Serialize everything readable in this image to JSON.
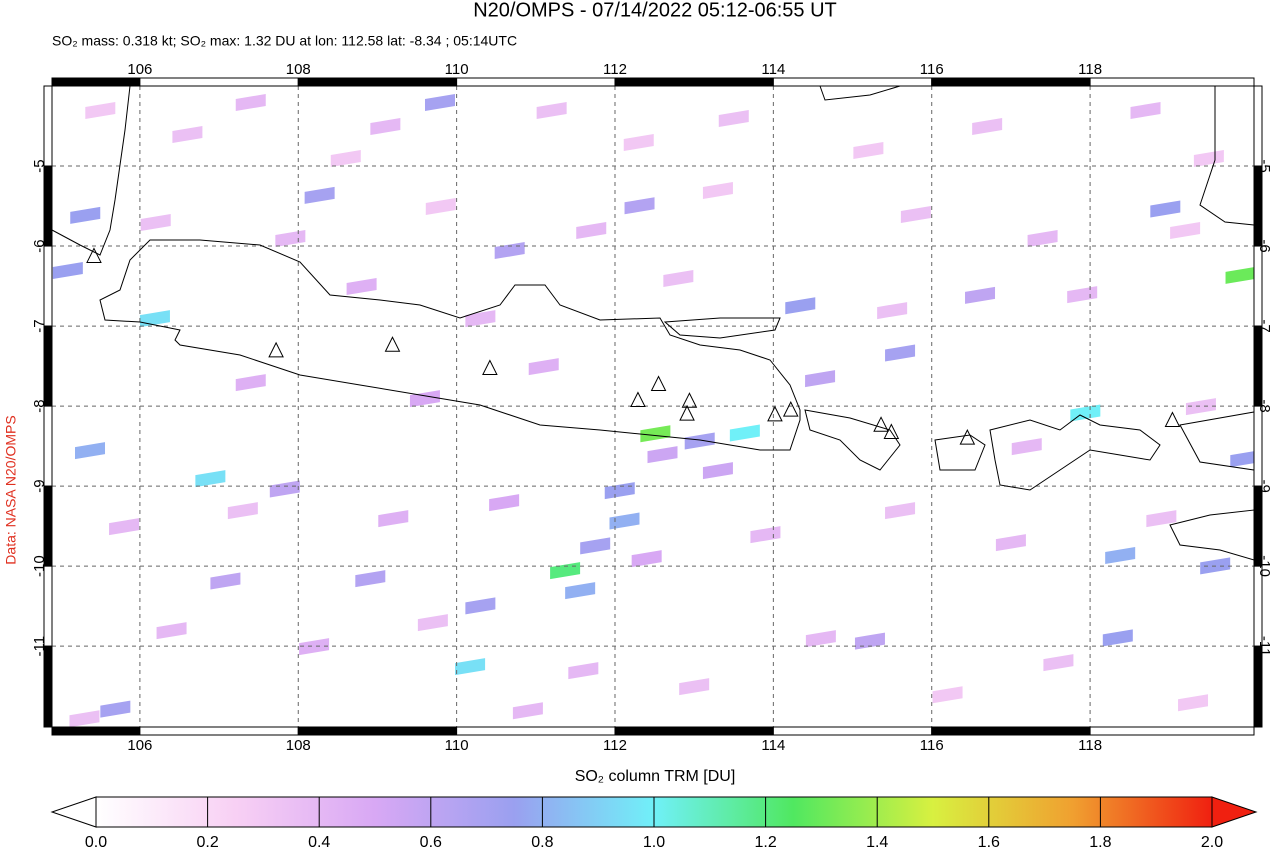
{
  "chart_data": {
    "type": "map",
    "title": "N20/OMPS - 07/14/2022 05:12-06:55 UT",
    "subtitle": "SO₂ mass: 0.318 kt; SO₂ max: 1.32 DU at lon: 112.58 lat: -8.34 ; 05:14UTC",
    "side_label": "Data: NASA N20/OMPS",
    "colorbar_label": "SO₂ column TRM [DU]",
    "xlim": [
      104.89,
      120.07
    ],
    "ylim": [
      -12.01,
      -4.0
    ],
    "xticks": [
      106,
      108,
      110,
      112,
      114,
      116,
      118
    ],
    "yticks": [
      -5,
      -6,
      -7,
      -8,
      -9,
      -10,
      -11
    ],
    "grid": true,
    "clim": [
      0,
      2
    ],
    "colormap": [
      "#ffffff",
      "#f8d0f4",
      "#d8a8f4",
      "#9aa0f0",
      "#70f0f8",
      "#50e860",
      "#d8f040",
      "#f0a030",
      "#f02010"
    ],
    "cticks": [
      {
        "value": 0,
        "label": "0.0"
      },
      0.2,
      0.4,
      0.6,
      0.8,
      {
        "value": 1,
        "label": "1.0"
      },
      1.2,
      1.4,
      1.6,
      1.8,
      {
        "value": 2,
        "label": "2.0"
      }
    ],
    "cells": {
      "lon": [
        112.51,
        111.37,
        113.64,
        106.89,
        106.19,
        110.17,
        117.94,
        119.9,
        112.06,
        112.12,
        111.75,
        109.79,
        114.34,
        108.27,
        110.3,
        105.37,
        105.09,
        105.31,
        118.95,
        118.38,
        119.58,
        119.96,
        115.6,
        108.91,
        112.31,
        110.67,
        116.61,
        107.08,
        107.83,
        105.69,
        118.35,
        115.22,
        114.59,
        111.56,
        113.07,
        105.5,
        106.6,
        107.4,
        108.6,
        109.1,
        111.2,
        112.3,
        113.5,
        115.2,
        116.7,
        118.7,
        119.5,
        106.2,
        107.9,
        109.8,
        111.7,
        113.3,
        115.8,
        117.4,
        119.2,
        108.8,
        110.3,
        112.8,
        115.5,
        117.9,
        107.4,
        109.6,
        111.1,
        112.6,
        113.3,
        117.2,
        119.4,
        105.8,
        107.3,
        109.2,
        110.6,
        112.4,
        113.9,
        115.6,
        117.0,
        118.9,
        106.4,
        108.2,
        109.7,
        111.6,
        113.0,
        114.6,
        116.2,
        117.6,
        119.3,
        105.3,
        110.9
      ],
      "lat": [
        -8.34,
        -10.05,
        -8.33,
        -8.9,
        -6.9,
        -11.25,
        -8.08,
        -6.36,
        -9.05,
        -9.43,
        -9.74,
        -4.2,
        -6.74,
        -5.36,
        -10.49,
        -8.55,
        -6.3,
        -5.61,
        -5.53,
        -9.86,
        -9.99,
        -8.65,
        -7.33,
        -10.15,
        -5.49,
        -6.05,
        -6.61,
        -10.18,
        -9.03,
        -11.78,
        -10.89,
        -10.93,
        -7.65,
        -10.3,
        -8.43,
        -4.3,
        -4.6,
        -4.2,
        -4.9,
        -4.5,
        -4.3,
        -4.7,
        -4.4,
        -4.8,
        -4.5,
        -4.3,
        -4.9,
        -5.7,
        -5.9,
        -5.5,
        -5.8,
        -5.3,
        -5.6,
        -5.9,
        -5.8,
        -6.5,
        -6.9,
        -6.4,
        -6.8,
        -6.6,
        -7.7,
        -7.9,
        -7.5,
        -8.6,
        -8.8,
        -8.5,
        -8.0,
        -9.5,
        -9.3,
        -9.4,
        -9.2,
        -9.9,
        -9.6,
        -9.3,
        -9.7,
        -9.4,
        -10.8,
        -11.0,
        -10.7,
        -11.3,
        -11.5,
        -10.9,
        -11.6,
        -11.2,
        -11.7,
        -11.9,
        -11.8
      ],
      "values": [
        1.32,
        1.2,
        1.0,
        0.95,
        0.95,
        0.95,
        1.0,
        1.3,
        0.75,
        0.8,
        0.7,
        0.7,
        0.75,
        0.7,
        0.7,
        0.8,
        0.75,
        0.75,
        0.75,
        0.8,
        0.75,
        0.75,
        0.7,
        0.65,
        0.65,
        0.65,
        0.6,
        0.6,
        0.6,
        0.7,
        0.75,
        0.6,
        0.6,
        0.8,
        0.7,
        0.3,
        0.35,
        0.4,
        0.3,
        0.4,
        0.35,
        0.3,
        0.35,
        0.3,
        0.35,
        0.4,
        0.3,
        0.35,
        0.4,
        0.3,
        0.4,
        0.3,
        0.35,
        0.4,
        0.3,
        0.45,
        0.4,
        0.35,
        0.35,
        0.4,
        0.45,
        0.5,
        0.45,
        0.55,
        0.55,
        0.4,
        0.35,
        0.4,
        0.35,
        0.45,
        0.5,
        0.5,
        0.4,
        0.35,
        0.4,
        0.35,
        0.4,
        0.45,
        0.35,
        0.4,
        0.35,
        0.4,
        0.3,
        0.35,
        0.3,
        0.35,
        0.4
      ]
    },
    "volcanoes": {
      "lon": [
        105.42,
        107.72,
        109.19,
        110.42,
        112.29,
        112.55,
        112.94,
        112.91,
        114.02,
        114.22,
        115.36,
        115.49,
        116.45,
        119.04
      ],
      "lat": [
        -6.13,
        -7.31,
        -7.24,
        -7.53,
        -7.93,
        -7.73,
        -7.94,
        -8.1,
        -8.11,
        -8.05,
        -8.24,
        -8.33,
        -8.4,
        -8.18
      ]
    }
  }
}
